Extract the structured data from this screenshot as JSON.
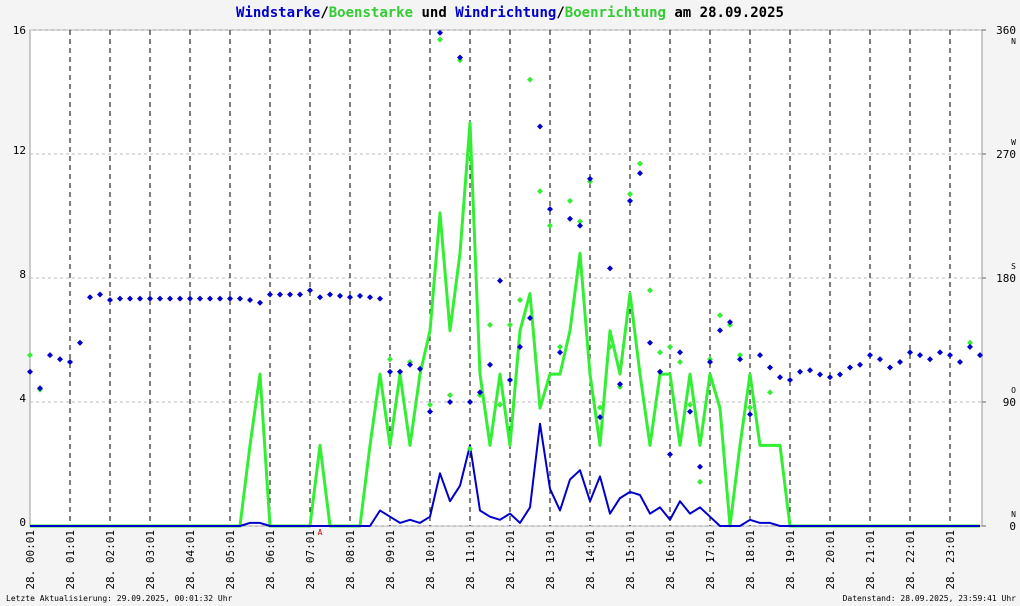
{
  "chart_data": {
    "type": "line",
    "title_sep": "/",
    "title_join": " und ",
    "title_suffix": " am 28.09.2025",
    "footer_left": "Letzte Aktualisierung: 29.09.2025, 00:01:32 Uhr",
    "footer_right": "Datenstand: 28.09.2025, 23:59:41 Uhr",
    "xlim": [
      0,
      23.8
    ],
    "ylim": [
      0,
      16
    ],
    "yticks": [
      0,
      4,
      8,
      12,
      16
    ],
    "y2lim": [
      0,
      360
    ],
    "y2ticks": [
      0,
      90,
      180,
      270,
      360
    ],
    "y2tick_compass": [
      "N",
      "O",
      "S",
      "W",
      "N"
    ],
    "grid": true,
    "xticks": [
      {
        "value": 0,
        "label": "28. 00:01"
      },
      {
        "value": 1,
        "label": "28. 01:01"
      },
      {
        "value": 2,
        "label": "28. 02:01"
      },
      {
        "value": 3,
        "label": "28. 03:01"
      },
      {
        "value": 4,
        "label": "28. 04:01"
      },
      {
        "value": 5,
        "label": "28. 05:01"
      },
      {
        "value": 6,
        "label": "28. 06:01"
      },
      {
        "value": 7,
        "label": "28. 07:01"
      },
      {
        "value": 8,
        "label": "28. 08:01"
      },
      {
        "value": 9,
        "label": "28. 09:01"
      },
      {
        "value": 10,
        "label": "28. 10:01"
      },
      {
        "value": 11,
        "label": "28. 11:01"
      },
      {
        "value": 12,
        "label": "28. 12:01"
      },
      {
        "value": 13,
        "label": "28. 13:01"
      },
      {
        "value": 14,
        "label": "28. 14:01"
      },
      {
        "value": 15,
        "label": "28. 15:01"
      },
      {
        "value": 16,
        "label": "28. 16:01"
      },
      {
        "value": 17,
        "label": "28. 17:01"
      },
      {
        "value": 18,
        "label": "28. 18:01"
      },
      {
        "value": 19,
        "label": "28. 19:01"
      },
      {
        "value": 20,
        "label": "28. 20:01"
      },
      {
        "value": 21,
        "label": "28. 21:01"
      },
      {
        "value": 22,
        "label": "28. 22:01"
      },
      {
        "value": 23,
        "label": "28. 23:01"
      }
    ],
    "annotations": [
      {
        "text": "A",
        "x": 7.25,
        "y": 0
      }
    ],
    "x": [
      0,
      0.25,
      0.5,
      0.75,
      1,
      1.25,
      1.5,
      1.75,
      2,
      2.25,
      2.5,
      2.75,
      3,
      3.25,
      3.5,
      3.75,
      4,
      4.25,
      4.5,
      4.75,
      5,
      5.25,
      5.5,
      5.75,
      6,
      6.25,
      6.5,
      6.75,
      7,
      7.25,
      7.5,
      7.75,
      8,
      8.25,
      8.5,
      8.75,
      9,
      9.25,
      9.5,
      9.75,
      10,
      10.25,
      10.5,
      10.75,
      11,
      11.25,
      11.5,
      11.75,
      12,
      12.25,
      12.5,
      12.75,
      13,
      13.25,
      13.5,
      13.75,
      14,
      14.25,
      14.5,
      14.75,
      15,
      15.25,
      15.5,
      15.75,
      16,
      16.25,
      16.5,
      16.75,
      17,
      17.25,
      17.5,
      17.75,
      18,
      18.25,
      18.5,
      18.75,
      19,
      19.25,
      19.5,
      19.75,
      20,
      20.25,
      20.5,
      20.75,
      21,
      21.25,
      21.5,
      21.75,
      22,
      22.25,
      22.5,
      22.75,
      23,
      23.25,
      23.5,
      23.75
    ],
    "series": [
      {
        "name": "Windstarke",
        "color": "#0000cc",
        "style": "line",
        "values": [
          0,
          0,
          0,
          0,
          0,
          0,
          0,
          0,
          0,
          0,
          0,
          0,
          0,
          0,
          0,
          0,
          0,
          0,
          0,
          0,
          0,
          0,
          0.1,
          0.1,
          0,
          0,
          0,
          0,
          0,
          0,
          0,
          0,
          0,
          0,
          0,
          0.5,
          0.3,
          0.1,
          0.2,
          0.1,
          0.3,
          1.7,
          0.8,
          1.3,
          2.6,
          0.5,
          0.3,
          0.2,
          0.4,
          0.1,
          0.6,
          3.3,
          1.2,
          0.5,
          1.5,
          1.8,
          0.8,
          1.6,
          0.4,
          0.9,
          1.1,
          1.0,
          0.4,
          0.6,
          0.2,
          0.8,
          0.4,
          0.6,
          0.3,
          0,
          0,
          0,
          0.2,
          0.1,
          0.1,
          0,
          0,
          0,
          0,
          0,
          0,
          0,
          0,
          0,
          0,
          0,
          0,
          0,
          0,
          0,
          0,
          0,
          0,
          0,
          0,
          0
        ]
      },
      {
        "name": "Boenstarke",
        "color": "#33ee33",
        "style": "line",
        "values": [
          0,
          0,
          0,
          0,
          0,
          0,
          0,
          0,
          0,
          0,
          0,
          0,
          0,
          0,
          0,
          0,
          0,
          0,
          0,
          0,
          0,
          0,
          2.6,
          4.9,
          0,
          0,
          0,
          0,
          0,
          2.6,
          0,
          0,
          0,
          0,
          2.6,
          4.9,
          2.6,
          4.9,
          2.6,
          4.9,
          6.3,
          10.1,
          6.3,
          8.8,
          13,
          4.9,
          2.6,
          4.9,
          2.6,
          6.3,
          7.5,
          3.8,
          4.9,
          4.9,
          6.3,
          8.8,
          4.9,
          2.6,
          6.3,
          4.9,
          7.5,
          4.9,
          2.6,
          4.9,
          4.9,
          2.6,
          4.9,
          2.6,
          4.9,
          3.8,
          0,
          2.6,
          4.9,
          2.6,
          2.6,
          2.6,
          0,
          0,
          0,
          0,
          0,
          0,
          0,
          0,
          0,
          0,
          0,
          0,
          0,
          0,
          0,
          0,
          0,
          0,
          0,
          0
        ]
      },
      {
        "name": "Windrichtung",
        "color": "#0000cc",
        "style": "diamond",
        "axis": "y2",
        "values": [
          112,
          100,
          124,
          121,
          119,
          133,
          166,
          168,
          164,
          165,
          165,
          165,
          165,
          165,
          165,
          165,
          165,
          165,
          165,
          165,
          165,
          165,
          164,
          162,
          168,
          168,
          168,
          168,
          171,
          166,
          168,
          167,
          166,
          167,
          166,
          165,
          112,
          112,
          117,
          114,
          83,
          358,
          90,
          340,
          90,
          97,
          117,
          178,
          106,
          130,
          151,
          290,
          230,
          126,
          223,
          218,
          252,
          79,
          187,
          103,
          236,
          256,
          133,
          112,
          52,
          126,
          83,
          43,
          119,
          142,
          148,
          121,
          81,
          124,
          115,
          108,
          106,
          112,
          113,
          110,
          108,
          110,
          115,
          117,
          124,
          121,
          115,
          119,
          126,
          124,
          121,
          126,
          124,
          119,
          130,
          124
        ]
      },
      {
        "name": "Boenrichtung",
        "color": "#33ee33",
        "style": "diamond",
        "axis": "y2",
        "values": [
          124,
          99,
          null,
          null,
          null,
          null,
          null,
          null,
          null,
          null,
          null,
          null,
          null,
          null,
          null,
          null,
          null,
          null,
          null,
          null,
          null,
          null,
          null,
          null,
          null,
          null,
          null,
          null,
          null,
          null,
          null,
          null,
          null,
          null,
          null,
          null,
          121,
          112,
          119,
          null,
          88,
          353,
          95,
          338,
          56,
          95,
          146,
          88,
          146,
          164,
          324,
          243,
          218,
          130,
          236,
          221,
          250,
          86,
          130,
          101,
          241,
          263,
          171,
          126,
          130,
          119,
          88,
          32,
          121,
          153,
          146,
          124,
          86,
          null,
          97,
          null,
          null,
          null,
          null,
          null,
          null,
          null,
          null,
          null,
          null,
          null,
          null,
          null,
          null,
          null,
          null,
          null,
          null,
          null,
          133,
          null
        ]
      }
    ]
  }
}
